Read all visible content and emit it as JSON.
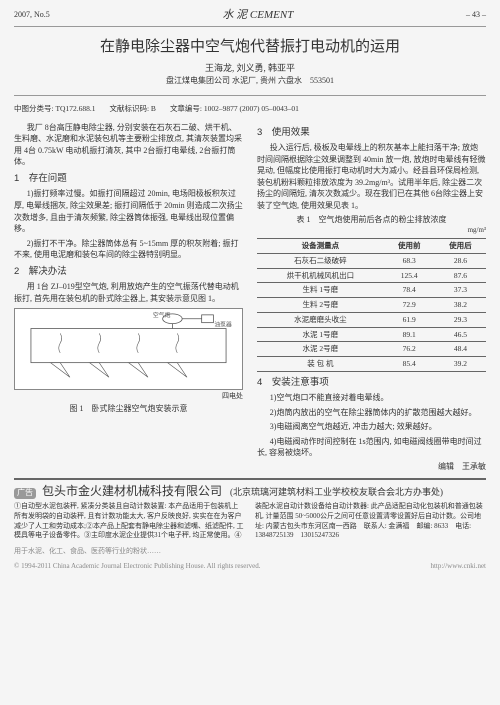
{
  "header": {
    "issue": "2007, No.5",
    "journal": "水 泥 CEMENT",
    "pagenum": "– 43 –"
  },
  "article": {
    "title": "在静电除尘器中空气炮代替振打电动机的运用",
    "authors": "王海龙, 刘义勇, 韩亚平",
    "affiliation": "盘江煤电集团公司 水泥厂, 贵州 六盘水　553501",
    "classline": {
      "a": "中图分类号: TQ172.688.1",
      "b": "文献标识码: B",
      "c": "文章编号: 1002–9877 (2007) 05–0043–01"
    }
  },
  "leftcol": {
    "p0": "我厂 8台高压静电除尘器, 分别安装在石灰石二破、烘干机、生料磨、水泥磨和水泥装包机等主要粉尘排放点, 其清灰装置均采用 4台 0.75kW 电动机振打清灰, 其中 2台振打电晕线, 2台振打筒体。",
    "sec1": "1　存在问题",
    "p1a": "1)振打频率过慢。如振打间隔超过 20min, 电场阳极板积灰过厚, 电晕线捆灰, 除尘效果差; 振打间隔低于 20min 则造成二次扬尘次数增多, 且由于清灰频繁, 除尘器筒体振强, 电晕线出现位置偏移。",
    "p1b": "2)振打不干净。除尘器筒体总有 5~15mm 厚的积灰附着; 振打不来, 使用电泥磨和装包车间的除尘器特别明显。",
    "sec2": "2　解决办法",
    "p2a": "用 1台 ZJ–019型空气炮, 利用放炮产生的空气振荡代替电动机振打, 首先用在装包机的卧式除尘器上, 其安装示意见图 1。",
    "figcap1": "四电处",
    "figcap2": "图 1　卧式除尘器空气炮安装示意"
  },
  "rightcol": {
    "sec3": "3　使用效果",
    "p3a": "投入运行后, 极板及电晕线上的积灰基本上能扫落干净; 放炮时间间隔根据除尘效果调整到 40min 放一炮, 放炮时电晕线有轻微晃动, 但幅度比使用振打电动机时大为减小。经县县环保局检测, 装包机粉料颗粒排放浓度为 39.2mg/m³。试用半年后, 除尘器二次扬尘的间隔短, 清灰次数减少。现在我们已在其他 6台除尘器上安装了空气炮, 使用效果见表 1。",
    "tablecap": "表 1　空气炮使用前后各点的粉尘排放浓度",
    "tableunit": "mg/m³",
    "table": {
      "headers": [
        "设备测量点",
        "使用前",
        "使用后"
      ],
      "rows": [
        [
          "石灰石二级破碎",
          "68.3",
          "28.6"
        ],
        [
          "烘干机机械风机出口",
          "125.4",
          "87.6"
        ],
        [
          "生料 1号磨",
          "78.4",
          "37.3"
        ],
        [
          "生料 2号磨",
          "72.9",
          "38.2"
        ],
        [
          "水泥磨磨头收尘",
          "61.9",
          "29.3"
        ],
        [
          "水泥 1号磨",
          "89.1",
          "46.5"
        ],
        [
          "水泥 2号磨",
          "76.2",
          "48.4"
        ],
        [
          "装 包 机",
          "85.4",
          "39.2"
        ]
      ]
    },
    "sec4": "4　安装注意事项",
    "p4a": "1)空气炮口不能直接对着电晕线。",
    "p4b": "2)炮筒内放出的空气在除尘器筒体内的扩散范围越大越好。",
    "p4c": "3)电磁阀离空气炮越近, 冲击力越大; 效果越好。",
    "p4d": "4)电磁阀动作时间控制在 1s范围内, 如电磁阀线圈带电时间过长, 容易被烧坏。",
    "editor": "编辑　王承敏"
  },
  "ad": {
    "label": "广告",
    "title": "包头市金火建材机械科技有限公司",
    "sub": "(北京琉璃河建筑材料工业学校校友联合会北方办事处)",
    "body": "①自动型水泥包装秤, 紧凑分类装且自动计数装置: 本产品适用于包装机上所有发明袋的自动装秤, 且有计数功能太大, 客户反映良好, 实实在在为客户减少了人工和劳动成本;②本产品上配套有静电除尘器和滤嘴、纸滤配件, 工模具等电子设备零件。③主印度水泥企业提供31个电子秤, 均正常使用。④装配水泥自动计数设备给自动计数器: 此产品适配自动化包装机和普通包装机, 计量范围 50~5000公斤之间可任意设置清零设置好后自动计数。公司地址: 内蒙古包头市东河区南一西路　联系人: 金满福　邮编: 8633　电话: 13848725139　13015247326"
  },
  "footer": {
    "left": "用于水泥、化工、食品、医药等行业的粉状……",
    "center": "© 1994-2011 China Academic Journal Electronic Publishing House. All rights reserved.",
    "right": "http://www.cnki.net"
  }
}
